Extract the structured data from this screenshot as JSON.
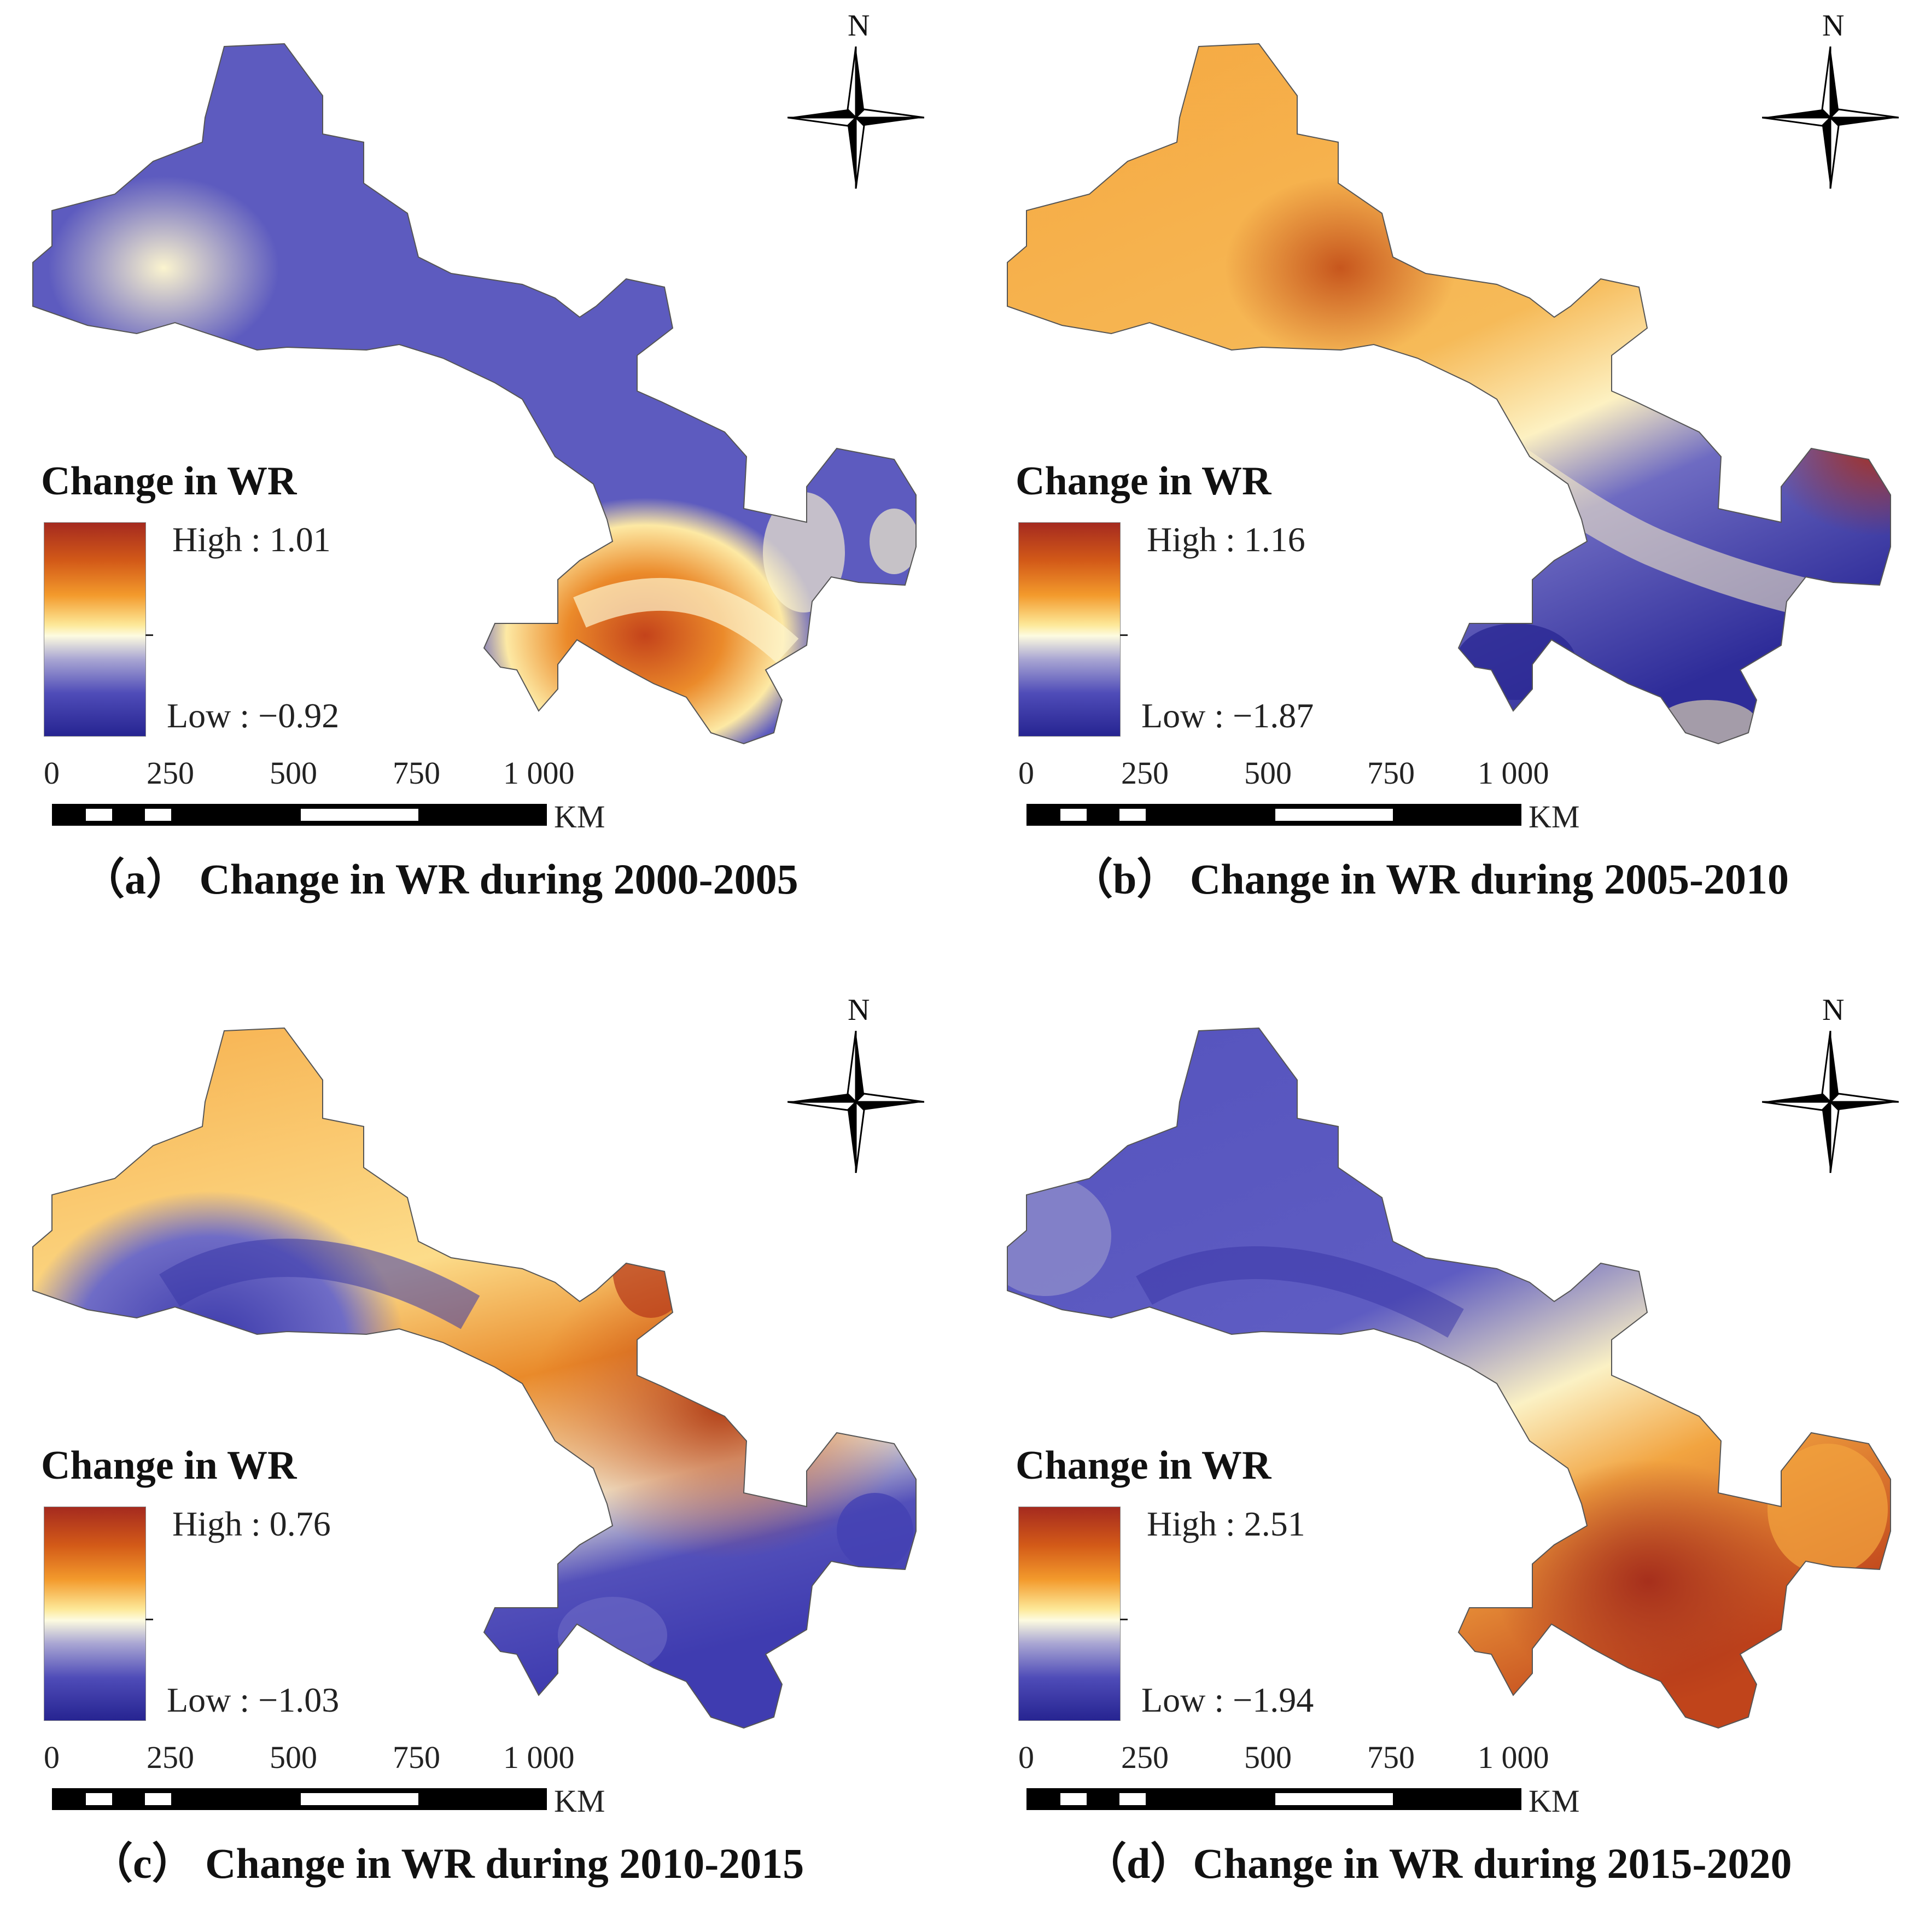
{
  "panels": [
    {
      "id": "a",
      "caption": "（a） Change in WR during 2000-2005",
      "legend": {
        "title": "Change in WR",
        "high_label": "High : 1.01",
        "low_label": "Low : −0.92",
        "high": 1.01,
        "low": -0.92
      },
      "scale": {
        "ticks": [
          "0",
          "250",
          "500",
          "750",
          "1 000"
        ],
        "unit": "KM"
      },
      "north": "N",
      "pattern": "west and north blue, southeast lobe orange"
    },
    {
      "id": "b",
      "caption": "（b） Change in WR  during 2005-2010",
      "legend": {
        "title": "Change in WR",
        "high_label": "High : 1.16",
        "low_label": "Low : −1.87",
        "high": 1.16,
        "low": -1.87
      },
      "scale": {
        "ticks": [
          "0",
          "250",
          "500",
          "750",
          "1 000"
        ],
        "unit": "KM"
      },
      "north": "N",
      "pattern": "northwest orange, southeast blue, east tip red"
    },
    {
      "id": "c",
      "caption": "（c） Change in WR  during 2010-2015",
      "legend": {
        "title": "Change in WR",
        "high_label": "High : 0.76",
        "low_label": "Low :  −1.03",
        "high": 0.76,
        "low": -1.03
      },
      "scale": {
        "ticks": [
          "0",
          "250",
          "500",
          "750",
          "1 000"
        ],
        "unit": "KM"
      },
      "north": "N",
      "pattern": "northwest orange, central corridor orange, south blue"
    },
    {
      "id": "d",
      "caption": "（d）Change in WR  during 2015-2020",
      "legend": {
        "title": "Change in WR",
        "high_label": "High : 2.51",
        "low_label": "Low :  −1.94",
        "high": 2.51,
        "low": -1.94
      },
      "scale": {
        "ticks": [
          "0",
          "250",
          "500",
          "750",
          "1 000"
        ],
        "unit": "KM"
      },
      "north": "N",
      "pattern": "northwest blue, southeast orange"
    }
  ],
  "colors": {
    "high": "#a52a1f",
    "orange": "#f39a2c",
    "mid": "#fdfbe0",
    "blue": "#4f4cb8",
    "low": "#262491"
  }
}
